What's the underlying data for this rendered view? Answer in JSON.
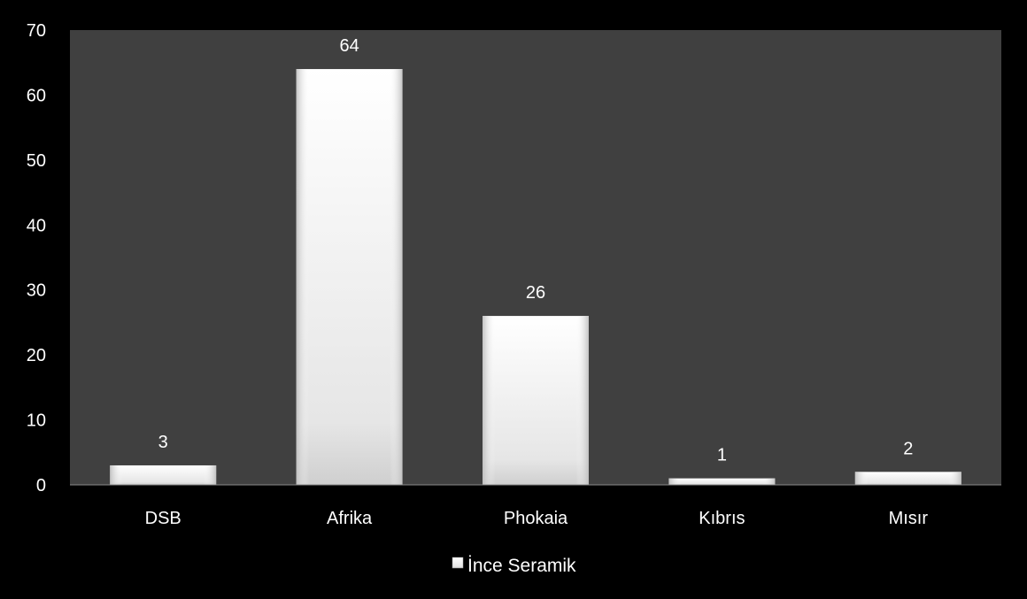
{
  "chart_data": {
    "type": "bar",
    "categories": [
      "DSB",
      "Afrika",
      "Phokaia",
      "Kıbrıs",
      "Mısır"
    ],
    "series": [
      {
        "name": "İnce Seramik",
        "values": [
          3,
          64,
          26,
          1,
          2
        ]
      }
    ],
    "data_labels": [
      "3",
      "64",
      "26",
      "1",
      "2"
    ],
    "ylim": [
      0,
      70
    ],
    "yticks": [
      "0",
      "10",
      "20",
      "30",
      "40",
      "50",
      "60",
      "70"
    ],
    "legend_position": "bottom",
    "grid": false,
    "colors": {
      "background": "#000000",
      "plot_area": "#404040",
      "bar_fill": "#f4f4f4",
      "text": "#ffffff"
    }
  }
}
